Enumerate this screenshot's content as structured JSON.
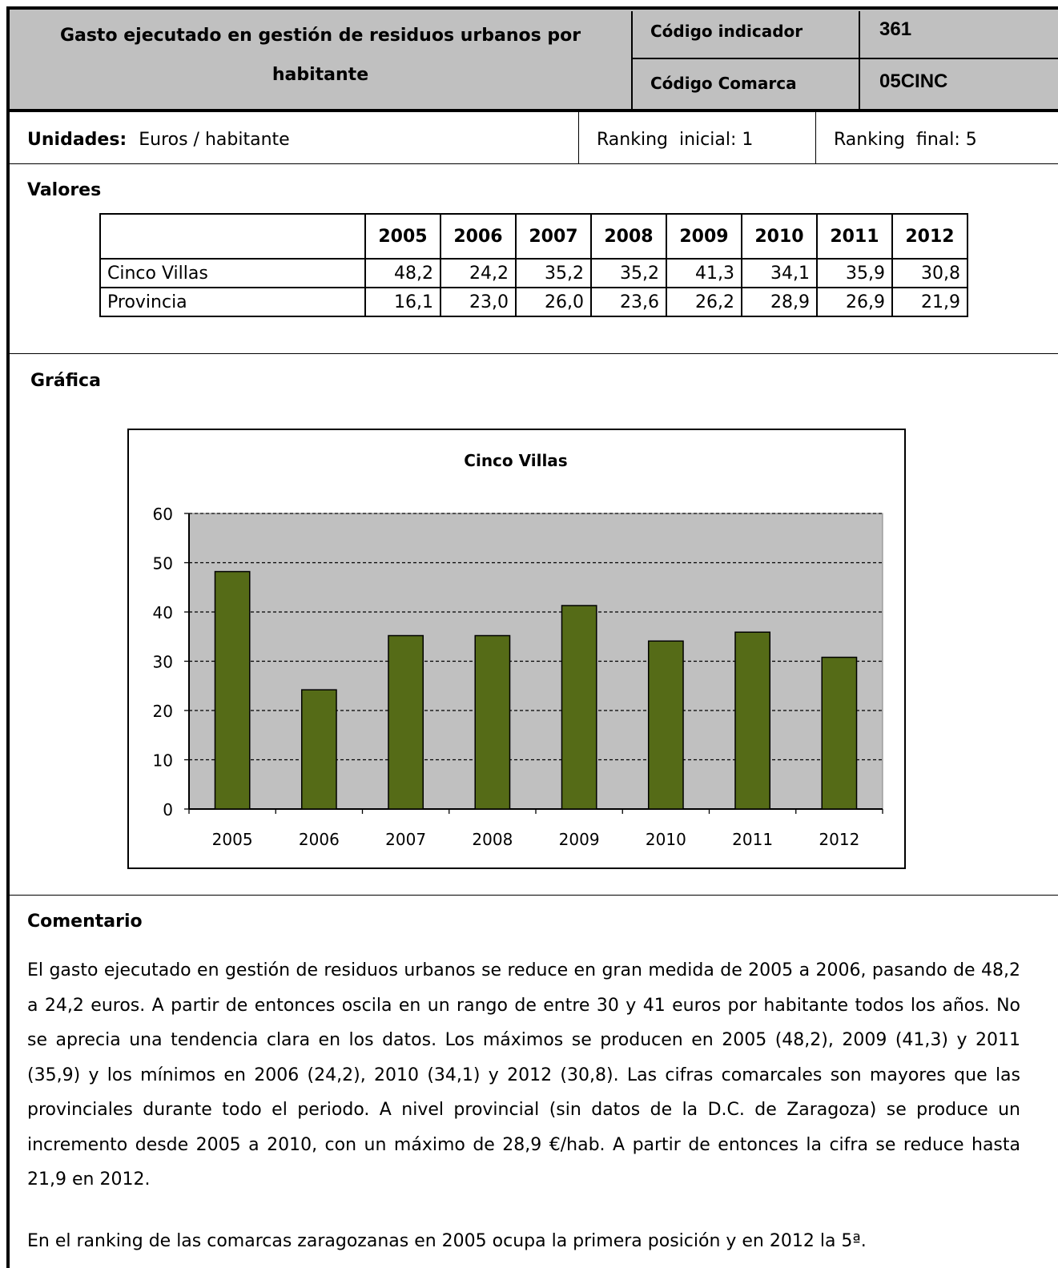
{
  "header": {
    "title": "Gasto ejecutado en gestión de residuos urbanos por habitante",
    "codigo_indicador_label": "Código indicador",
    "codigo_indicador_value": "361",
    "codigo_comarca_label": "Código Comarca",
    "codigo_comarca_value": "05CINC"
  },
  "info": {
    "unidades_label": "Unidades:",
    "unidades_value": "Euros / habitante",
    "ranking_inicial": "Ranking  inicial: 1",
    "ranking_final": "Ranking  final: 5"
  },
  "valores": {
    "heading": "Valores",
    "years": [
      "2005",
      "2006",
      "2007",
      "2008",
      "2009",
      "2010",
      "2011",
      "2012"
    ],
    "rows": [
      {
        "label": "Cinco Villas",
        "values": [
          "48,2",
          "24,2",
          "35,2",
          "35,2",
          "41,3",
          "34,1",
          "35,9",
          "30,8"
        ]
      },
      {
        "label": "Provincia",
        "values": [
          "16,1",
          "23,0",
          "26,0",
          "23,6",
          "26,2",
          "28,9",
          "26,9",
          "21,9"
        ]
      }
    ]
  },
  "grafica": {
    "heading": "Gráfica"
  },
  "chart_data": {
    "type": "bar",
    "title": "Cinco Villas",
    "categories": [
      "2005",
      "2006",
      "2007",
      "2008",
      "2009",
      "2010",
      "2011",
      "2012"
    ],
    "values": [
      48.2,
      24.2,
      35.2,
      35.2,
      41.3,
      34.1,
      35.9,
      30.8
    ],
    "ylim": [
      0,
      60
    ],
    "yticks": [
      0,
      10,
      20,
      30,
      40,
      50,
      60
    ],
    "grid": true,
    "bar_color": "#556b17",
    "plot_background": "#c0c0c0"
  },
  "comentario": {
    "heading": "Comentario",
    "paragraph1": "El gasto ejecutado en gestión de residuos urbanos se reduce en gran medida de 2005 a 2006, pasando de 48,2 a 24,2 euros. A partir de entonces oscila en un rango de entre 30 y 41 euros por habitante todos los años. No se aprecia una tendencia clara en los datos. Los máximos se producen en 2005 (48,2), 2009 (41,3) y 2011 (35,9) y los mínimos en 2006 (24,2), 2010 (34,1) y 2012 (30,8). Las cifras comarcales son mayores que las provinciales durante todo el periodo. A nivel provincial (sin datos de la D.C. de Zaragoza) se produce un incremento desde 2005 a 2010, con un máximo de 28,9 €/hab. A partir de entonces la cifra se reduce hasta 21,9 en 2012.",
    "paragraph2": "En el ranking de las comarcas zaragozanas en 2005 ocupa la primera posición y en 2012 la 5ª."
  }
}
